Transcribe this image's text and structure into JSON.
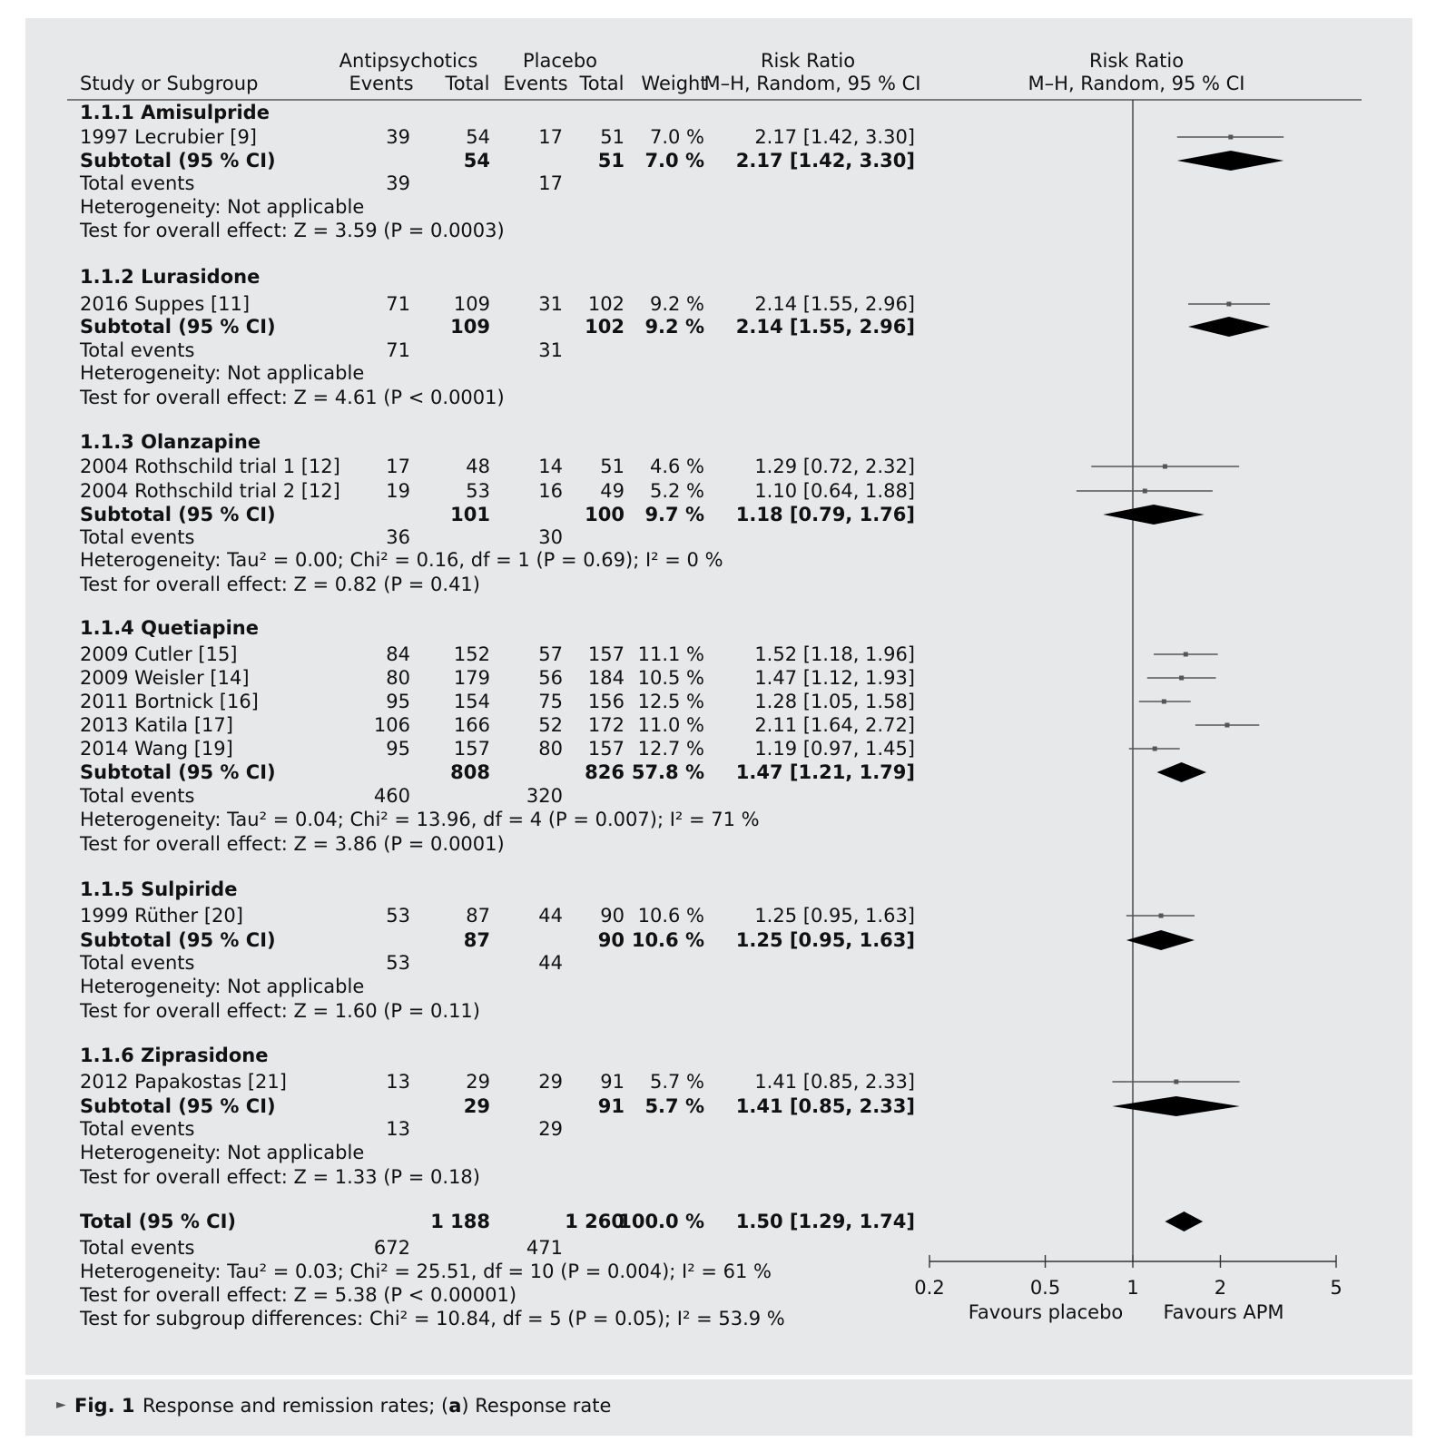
{
  "header": {
    "study_col": "Study or Subgroup",
    "group1": "Antipsychotics",
    "group2": "Placebo",
    "events": "Events",
    "total": "Total",
    "weight": "Weight",
    "rr_title": "Risk Ratio",
    "rr_method": "M–H, Random, 95 % CI"
  },
  "subgroups": [
    {
      "title": "1.1.1 Amisulpride",
      "studies": [
        {
          "name": "1997 Lecrubier [9]",
          "e1": "39",
          "t1": "54",
          "e2": "17",
          "t2": "51",
          "weight": "7.0 %",
          "ci_text": "2.17 [1.42, 3.30]",
          "rr": 2.17,
          "lo": 1.42,
          "hi": 3.3
        }
      ],
      "subtotal": {
        "label": "Subtotal (95 % CI)",
        "t1": "54",
        "t2": "51",
        "weight": "7.0 %",
        "ci_text": "2.17 [1.42, 3.30]",
        "rr": 2.17,
        "lo": 1.42,
        "hi": 3.3
      },
      "total_events": {
        "label": "Total events",
        "e1": "39",
        "e2": "17"
      },
      "heterogeneity": "Heterogeneity: Not applicable",
      "overall": "Test for overall effect: Z = 3.59 (P = 0.0003)"
    },
    {
      "title": "1.1.2 Lurasidone",
      "studies": [
        {
          "name": "2016 Suppes [11]",
          "e1": "71",
          "t1": "109",
          "e2": "31",
          "t2": "102",
          "weight": "9.2 %",
          "ci_text": "2.14 [1.55, 2.96]",
          "rr": 2.14,
          "lo": 1.55,
          "hi": 2.96
        }
      ],
      "subtotal": {
        "label": "Subtotal (95 % CI)",
        "t1": "109",
        "t2": "102",
        "weight": "9.2 %",
        "ci_text": "2.14 [1.55, 2.96]",
        "rr": 2.14,
        "lo": 1.55,
        "hi": 2.96
      },
      "total_events": {
        "label": "Total events",
        "e1": "71",
        "e2": "31"
      },
      "heterogeneity": "Heterogeneity: Not applicable",
      "overall": "Test for overall effect: Z = 4.61 (P < 0.0001)"
    },
    {
      "title": "1.1.3 Olanzapine",
      "studies": [
        {
          "name": "2004 Rothschild trial 1 [12]",
          "e1": "17",
          "t1": "48",
          "e2": "14",
          "t2": "51",
          "weight": "4.6 %",
          "ci_text": "1.29 [0.72, 2.32]",
          "rr": 1.29,
          "lo": 0.72,
          "hi": 2.32
        },
        {
          "name": "2004 Rothschild trial 2 [12]",
          "e1": "19",
          "t1": "53",
          "e2": "16",
          "t2": "49",
          "weight": "5.2 %",
          "ci_text": "1.10 [0.64, 1.88]",
          "rr": 1.1,
          "lo": 0.64,
          "hi": 1.88
        }
      ],
      "subtotal": {
        "label": "Subtotal (95 % CI)",
        "t1": "101",
        "t2": "100",
        "weight": "9.7 %",
        "ci_text": "1.18 [0.79, 1.76]",
        "rr": 1.18,
        "lo": 0.79,
        "hi": 1.76
      },
      "total_events": {
        "label": "Total events",
        "e1": "36",
        "e2": "30"
      },
      "heterogeneity": "Heterogeneity: Tau² = 0.00; Chi² = 0.16, df = 1 (P = 0.69); I² = 0 %",
      "overall": "Test for overall effect: Z = 0.82 (P = 0.41)"
    },
    {
      "title": "1.1.4 Quetiapine",
      "studies": [
        {
          "name": "2009 Cutler [15]",
          "e1": "84",
          "t1": "152",
          "e2": "57",
          "t2": "157",
          "weight": "11.1 %",
          "ci_text": "1.52 [1.18, 1.96]",
          "rr": 1.52,
          "lo": 1.18,
          "hi": 1.96
        },
        {
          "name": "2009 Weisler [14]",
          "e1": "80",
          "t1": "179",
          "e2": "56",
          "t2": "184",
          "weight": "10.5 %",
          "ci_text": "1.47 [1.12, 1.93]",
          "rr": 1.47,
          "lo": 1.12,
          "hi": 1.93
        },
        {
          "name": "2011 Bortnick [16]",
          "e1": "95",
          "t1": "154",
          "e2": "75",
          "t2": "156",
          "weight": "12.5 %",
          "ci_text": "1.28 [1.05, 1.58]",
          "rr": 1.28,
          "lo": 1.05,
          "hi": 1.58
        },
        {
          "name": "2013 Katila [17]",
          "e1": "106",
          "t1": "166",
          "e2": "52",
          "t2": "172",
          "weight": "11.0 %",
          "ci_text": "2.11 [1.64, 2.72]",
          "rr": 2.11,
          "lo": 1.64,
          "hi": 2.72
        },
        {
          "name": "2014 Wang [19]",
          "e1": "95",
          "t1": "157",
          "e2": "80",
          "t2": "157",
          "weight": "12.7 %",
          "ci_text": "1.19 [0.97, 1.45]",
          "rr": 1.19,
          "lo": 0.97,
          "hi": 1.45
        }
      ],
      "subtotal": {
        "label": "Subtotal (95 % CI)",
        "t1": "808",
        "t2": "826",
        "weight": "57.8 %",
        "ci_text": "1.47 [1.21, 1.79]",
        "rr": 1.47,
        "lo": 1.21,
        "hi": 1.79
      },
      "total_events": {
        "label": "Total events",
        "e1": "460",
        "e2": "320"
      },
      "heterogeneity": "Heterogeneity: Tau² = 0.04; Chi² = 13.96, df = 4 (P = 0.007); I² = 71 %",
      "overall": "Test for overall effect: Z = 3.86 (P = 0.0001)"
    },
    {
      "title": "1.1.5 Sulpiride",
      "studies": [
        {
          "name": "1999 Rüther [20]",
          "e1": "53",
          "t1": "87",
          "e2": "44",
          "t2": "90",
          "weight": "10.6 %",
          "ci_text": "1.25 [0.95, 1.63]",
          "rr": 1.25,
          "lo": 0.95,
          "hi": 1.63
        }
      ],
      "subtotal": {
        "label": "Subtotal (95 % CI)",
        "t1": "87",
        "t2": "90",
        "weight": "10.6 %",
        "ci_text": "1.25 [0.95, 1.63]",
        "rr": 1.25,
        "lo": 0.95,
        "hi": 1.63
      },
      "total_events": {
        "label": "Total events",
        "e1": "53",
        "e2": "44"
      },
      "heterogeneity": "Heterogeneity: Not applicable",
      "overall": "Test for overall effect: Z = 1.60 (P = 0.11)"
    },
    {
      "title": "1.1.6 Ziprasidone",
      "studies": [
        {
          "name": "2012 Papakostas [21]",
          "e1": "13",
          "t1": "29",
          "e2": "29",
          "t2": "91",
          "weight": "5.7 %",
          "ci_text": "1.41 [0.85, 2.33]",
          "rr": 1.41,
          "lo": 0.85,
          "hi": 2.33
        }
      ],
      "subtotal": {
        "label": "Subtotal (95 % CI)",
        "t1": "29",
        "t2": "91",
        "weight": "5.7 %",
        "ci_text": "1.41 [0.85, 2.33]",
        "rr": 1.41,
        "lo": 0.85,
        "hi": 2.33
      },
      "total_events": {
        "label": "Total events",
        "e1": "13",
        "e2": "29"
      },
      "heterogeneity": "Heterogeneity: Not applicable",
      "overall": "Test for overall effect: Z = 1.33 (P = 0.18)"
    }
  ],
  "total": {
    "label": "Total (95 % CI)",
    "t1": "1 188",
    "t2": "1 260",
    "weight": "100.0 %",
    "ci_text": "1.50 [1.29, 1.74]",
    "rr": 1.5,
    "lo": 1.29,
    "hi": 1.74,
    "total_events": {
      "label": "Total events",
      "e1": "672",
      "e2": "471"
    },
    "heterogeneity": "Heterogeneity: Tau² = 0.03; Chi² = 25.51, df = 10 (P = 0.004); I² = 61 %",
    "overall": "Test for overall effect: Z = 5.38 (P < 0.00001)",
    "subgroup_diff": "Test for subgroup differences: Chi² = 10.84, df = 5 (P = 0.05); I² = 53.9 %"
  },
  "axis": {
    "ticks": [
      0.2,
      0.5,
      1,
      2,
      5
    ],
    "tick_labels": [
      "0.2",
      "0.5",
      "1",
      "2",
      "5"
    ],
    "left_label": "Favours placebo",
    "right_label": "Favours APM",
    "scale": "log"
  },
  "caption": {
    "arrow": "►",
    "fig": "Fig. 1",
    "text_before": "Response and remission rates; (",
    "bold_letter": "a",
    "text_after": ") Response rate"
  },
  "chart_data": {
    "type": "forest",
    "x_scale": "log",
    "xlim": [
      0.2,
      5
    ],
    "x_ticks": [
      0.2,
      0.5,
      1,
      2,
      5
    ],
    "xlabel_left": "Favours placebo",
    "xlabel_right": "Favours APM",
    "header": "Risk Ratio M–H, Random, 95 % CI",
    "studies": [
      {
        "name": "1997 Lecrubier [9]",
        "rr": 2.17,
        "ci": [
          1.42,
          3.3
        ],
        "weight": 7.0
      },
      {
        "name": "2016 Suppes [11]",
        "rr": 2.14,
        "ci": [
          1.55,
          2.96
        ],
        "weight": 9.2
      },
      {
        "name": "2004 Rothschild trial 1 [12]",
        "rr": 1.29,
        "ci": [
          0.72,
          2.32
        ],
        "weight": 4.6
      },
      {
        "name": "2004 Rothschild trial 2 [12]",
        "rr": 1.1,
        "ci": [
          0.64,
          1.88
        ],
        "weight": 5.2
      },
      {
        "name": "2009 Cutler [15]",
        "rr": 1.52,
        "ci": [
          1.18,
          1.96
        ],
        "weight": 11.1
      },
      {
        "name": "2009 Weisler [14]",
        "rr": 1.47,
        "ci": [
          1.12,
          1.93
        ],
        "weight": 10.5
      },
      {
        "name": "2011 Bortnick [16]",
        "rr": 1.28,
        "ci": [
          1.05,
          1.58
        ],
        "weight": 12.5
      },
      {
        "name": "2013 Katila [17]",
        "rr": 2.11,
        "ci": [
          1.64,
          2.72
        ],
        "weight": 11.0
      },
      {
        "name": "2014 Wang [19]",
        "rr": 1.19,
        "ci": [
          0.97,
          1.45
        ],
        "weight": 12.7
      },
      {
        "name": "1999 Rüther [20]",
        "rr": 1.25,
        "ci": [
          0.95,
          1.63
        ],
        "weight": 10.6
      },
      {
        "name": "2012 Papakostas [21]",
        "rr": 1.41,
        "ci": [
          0.85,
          2.33
        ],
        "weight": 5.7
      }
    ],
    "subtotals": [
      {
        "name": "1.1.1 Amisulpride",
        "rr": 2.17,
        "ci": [
          1.42,
          3.3
        ]
      },
      {
        "name": "1.1.2 Lurasidone",
        "rr": 2.14,
        "ci": [
          1.55,
          2.96
        ]
      },
      {
        "name": "1.1.3 Olanzapine",
        "rr": 1.18,
        "ci": [
          0.79,
          1.76
        ]
      },
      {
        "name": "1.1.4 Quetiapine",
        "rr": 1.47,
        "ci": [
          1.21,
          1.79
        ]
      },
      {
        "name": "1.1.5 Sulpiride",
        "rr": 1.25,
        "ci": [
          0.95,
          1.63
        ]
      },
      {
        "name": "1.1.6 Ziprasidone",
        "rr": 1.41,
        "ci": [
          0.85,
          2.33
        ]
      }
    ],
    "overall": {
      "name": "Total (95 % CI)",
      "rr": 1.5,
      "ci": [
        1.29,
        1.74
      ]
    }
  }
}
